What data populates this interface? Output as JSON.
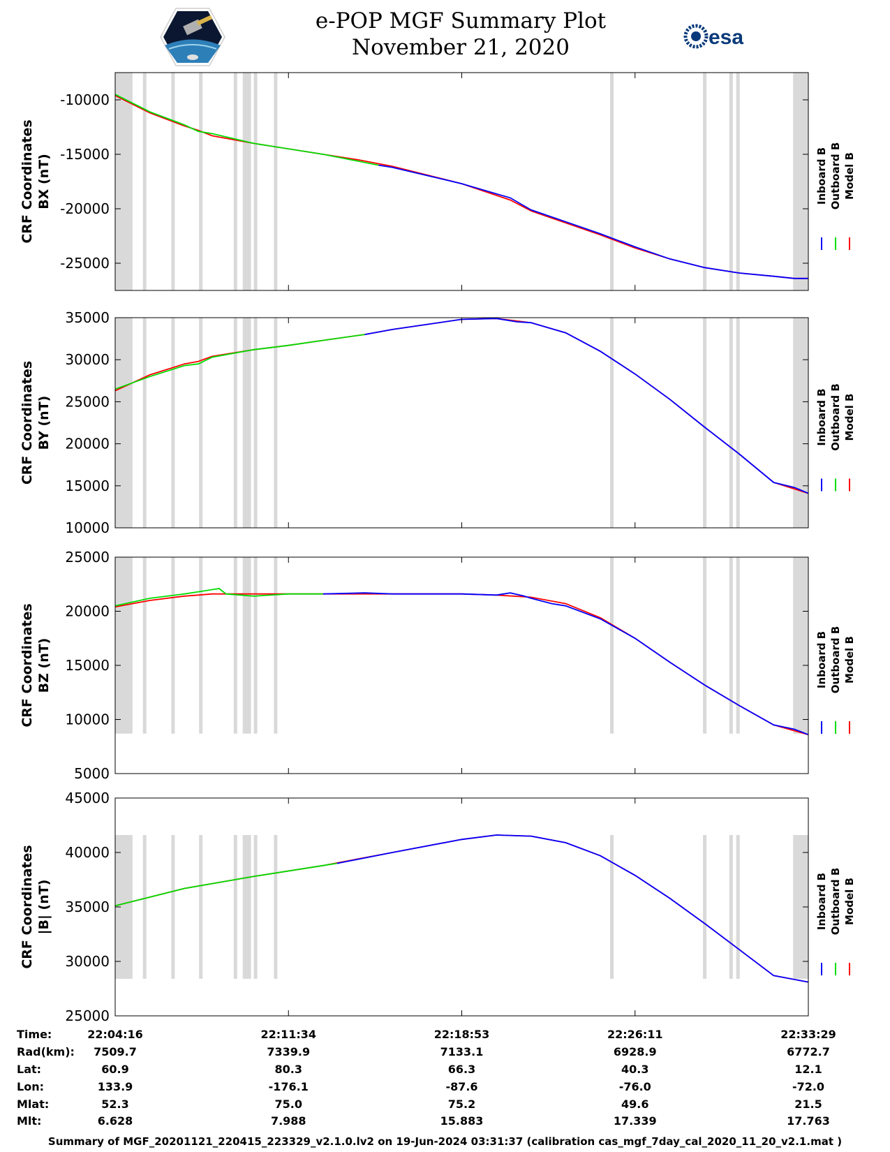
{
  "title": {
    "line1": "e-POP MGF Summary Plot",
    "line2": "November 21, 2020"
  },
  "logos": {
    "left": "cassiope-mission-logo",
    "right_text": "esa"
  },
  "colors": {
    "inboard": "#0000ff",
    "outboard": "#00dd00",
    "model": "#ff0000",
    "gap": "#d9d9d9"
  },
  "legend": {
    "inboard": "Inboard B",
    "outboard": "Outboard B",
    "model": "Model B"
  },
  "gap_intervals": [
    [
      0,
      0.025
    ],
    [
      0.04,
      0.045
    ],
    [
      0.081,
      0.086
    ],
    [
      0.121,
      0.126
    ],
    [
      0.171,
      0.176
    ],
    [
      0.184,
      0.196
    ],
    [
      0.2,
      0.205
    ],
    [
      0.229,
      0.234
    ],
    [
      0.714,
      0.719
    ],
    [
      0.848,
      0.853
    ],
    [
      0.886,
      0.891
    ],
    [
      0.896,
      0.901
    ],
    [
      0.978,
      1.0
    ]
  ],
  "chart_data": [
    {
      "type": "line",
      "title": "",
      "ylabel_line1": "CRF Coordinates",
      "ylabel_line2": "BX (nT)",
      "ylim": [
        -27500,
        -7500
      ],
      "yticks": [
        -10000,
        -15000,
        -20000,
        -25000
      ],
      "gap_top": -7500,
      "gap_bottom": -27500,
      "series": [
        {
          "name": "Model B",
          "x": [
            0,
            0.05,
            0.1,
            0.12,
            0.14,
            0.2,
            0.3,
            0.35,
            0.4,
            0.5,
            0.57,
            0.6,
            0.65,
            0.7,
            0.75,
            0.8,
            0.85,
            0.9,
            0.95,
            0.98,
            1.0
          ],
          "y": [
            -9600,
            -11200,
            -12400,
            -12800,
            -13300,
            -14000,
            -15000,
            -15500,
            -16100,
            -17700,
            -19200,
            -20200,
            -21300,
            -22400,
            -23600,
            -24600,
            -25400,
            -25900,
            -26200,
            -26400,
            -26400
          ]
        },
        {
          "name": "Outboard B",
          "x": [
            0,
            0.05,
            0.1,
            0.12,
            0.14,
            0.2,
            0.3,
            0.38
          ],
          "y": [
            -9500,
            -11100,
            -12300,
            -12900,
            -13100,
            -14000,
            -15000,
            -16000
          ]
        },
        {
          "name": "Inboard B",
          "x": [
            0.38,
            0.4,
            0.5,
            0.57,
            0.6,
            0.65,
            0.7,
            0.75,
            0.8,
            0.85,
            0.9,
            0.95,
            0.98,
            1.0
          ],
          "y": [
            -16000,
            -16200,
            -17700,
            -19000,
            -20100,
            -21200,
            -22300,
            -23500,
            -24600,
            -25400,
            -25900,
            -26200,
            -26400,
            -26400
          ]
        }
      ]
    },
    {
      "type": "line",
      "title": "",
      "ylabel_line1": "CRF Coordinates",
      "ylabel_line2": "BY (nT)",
      "ylim": [
        10000,
        35000
      ],
      "yticks": [
        35000,
        30000,
        25000,
        20000,
        15000,
        10000
      ],
      "gap_top": 35000,
      "gap_bottom": 10000,
      "series": [
        {
          "name": "Model B",
          "x": [
            0,
            0.05,
            0.1,
            0.12,
            0.14,
            0.2,
            0.25,
            0.3,
            0.36,
            0.4,
            0.5,
            0.55,
            0.6,
            0.65,
            0.7,
            0.75,
            0.8,
            0.85,
            0.9,
            0.95,
            1.0
          ],
          "y": [
            26300,
            28200,
            29500,
            29800,
            30400,
            31200,
            31700,
            32300,
            33000,
            33600,
            34800,
            34900,
            34400,
            33200,
            31000,
            28300,
            25300,
            22000,
            18800,
            15400,
            14100
          ]
        },
        {
          "name": "Outboard B",
          "x": [
            0,
            0.05,
            0.1,
            0.12,
            0.14,
            0.2,
            0.25,
            0.3,
            0.36
          ],
          "y": [
            26500,
            28000,
            29300,
            29500,
            30300,
            31200,
            31700,
            32300,
            33000
          ]
        },
        {
          "name": "Inboard B",
          "x": [
            0.36,
            0.4,
            0.5,
            0.55,
            0.58,
            0.6,
            0.65,
            0.7,
            0.75,
            0.8,
            0.85,
            0.9,
            0.95,
            0.98,
            1.0
          ],
          "y": [
            33000,
            33600,
            34800,
            34900,
            34500,
            34400,
            33200,
            31000,
            28300,
            25300,
            22000,
            18800,
            15400,
            14800,
            14100
          ]
        }
      ]
    },
    {
      "type": "line",
      "title": "",
      "ylabel_line1": "CRF Coordinates",
      "ylabel_line2": "BZ (nT)",
      "ylim": [
        5000,
        25000
      ],
      "yticks": [
        25000,
        20000,
        15000,
        10000,
        5000
      ],
      "gap_top": 25000,
      "gap_bottom": 8700,
      "series": [
        {
          "name": "Model B",
          "x": [
            0,
            0.05,
            0.1,
            0.12,
            0.14,
            0.2,
            0.25,
            0.3,
            0.4,
            0.5,
            0.55,
            0.6,
            0.65,
            0.7,
            0.75,
            0.8,
            0.85,
            0.9,
            0.95,
            1.0
          ],
          "y": [
            20400,
            21000,
            21400,
            21500,
            21600,
            21600,
            21600,
            21600,
            21600,
            21600,
            21500,
            21300,
            20700,
            19400,
            17500,
            15300,
            13200,
            11300,
            9500,
            8600
          ]
        },
        {
          "name": "Outboard B",
          "x": [
            0,
            0.05,
            0.1,
            0.12,
            0.14,
            0.15,
            0.16,
            0.2,
            0.25,
            0.3
          ],
          "y": [
            20500,
            21200,
            21600,
            21800,
            22000,
            22100,
            21600,
            21400,
            21600,
            21600
          ]
        },
        {
          "name": "Inboard B",
          "x": [
            0.3,
            0.36,
            0.4,
            0.5,
            0.55,
            0.57,
            0.59,
            0.6,
            0.63,
            0.65,
            0.7,
            0.75,
            0.8,
            0.85,
            0.9,
            0.95,
            0.98,
            1.0
          ],
          "y": [
            21600,
            21700,
            21600,
            21600,
            21500,
            21700,
            21400,
            21200,
            20700,
            20500,
            19300,
            17500,
            15300,
            13200,
            11300,
            9500,
            9100,
            8600
          ]
        }
      ]
    },
    {
      "type": "line",
      "title": "",
      "ylabel_line1": "CRF Coordinates",
      "ylabel_line2": "|B| (nT)",
      "ylim": [
        25000,
        45000
      ],
      "yticks": [
        45000,
        40000,
        35000,
        30000,
        25000
      ],
      "gap_top": 41600,
      "gap_bottom": 28400,
      "series": [
        {
          "name": "Model B",
          "x": [
            0,
            0.1,
            0.2,
            0.3,
            0.4,
            0.5,
            0.55,
            0.6,
            0.65,
            0.7,
            0.75,
            0.8,
            0.85,
            0.9,
            0.95,
            1.0
          ],
          "y": [
            35100,
            36700,
            37800,
            38800,
            40000,
            41200,
            41600,
            41500,
            40900,
            39700,
            37900,
            35800,
            33500,
            31100,
            28700,
            28100
          ]
        },
        {
          "name": "Outboard B",
          "x": [
            0,
            0.1,
            0.2,
            0.3,
            0.32
          ],
          "y": [
            35100,
            36700,
            37800,
            38800,
            39000
          ]
        },
        {
          "name": "Inboard B",
          "x": [
            0.32,
            0.4,
            0.5,
            0.55,
            0.6,
            0.65,
            0.7,
            0.75,
            0.8,
            0.85,
            0.9,
            0.95,
            1.0
          ],
          "y": [
            39000,
            40000,
            41200,
            41600,
            41500,
            40900,
            39700,
            37900,
            35800,
            33500,
            31100,
            28700,
            28100
          ]
        }
      ]
    }
  ],
  "ephemeris": {
    "labels": [
      "Time:",
      "Rad(km):",
      "Lat:",
      "Lon:",
      "Mlat:",
      "Mlt:"
    ],
    "columns": [
      [
        "22:04:16",
        "7509.7",
        "60.9",
        "133.9",
        "52.3",
        "6.628"
      ],
      [
        "22:11:34",
        "7339.9",
        "80.3",
        "-176.1",
        "75.0",
        "7.988"
      ],
      [
        "22:18:53",
        "7133.1",
        "66.3",
        "-87.6",
        "75.2",
        "15.883"
      ],
      [
        "22:26:11",
        "6928.9",
        "40.3",
        "-76.0",
        "49.6",
        "17.339"
      ],
      [
        "22:33:29",
        "6772.7",
        "12.1",
        "-72.0",
        "21.5",
        "17.763"
      ]
    ]
  },
  "footer": "Summary of MGF_20201121_220415_223329_v2.1.0.lv2 on 19-Jun-2024 03:31:37 (calibration cas_mgf_7day_cal_2020_11_20_v2.1.mat )"
}
